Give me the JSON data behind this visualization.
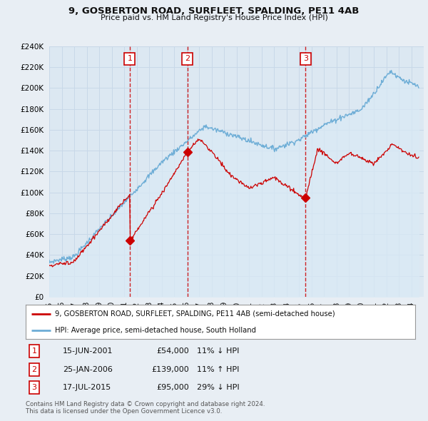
{
  "title": "9, GOSBERTON ROAD, SURFLEET, SPALDING, PE11 4AB",
  "subtitle": "Price paid vs. HM Land Registry's House Price Index (HPI)",
  "ylim": [
    0,
    240000
  ],
  "yticks": [
    0,
    20000,
    40000,
    60000,
    80000,
    100000,
    120000,
    140000,
    160000,
    180000,
    200000,
    220000,
    240000
  ],
  "hpi_color": "#6dadd6",
  "hpi_fill_color": "#daeaf5",
  "price_color": "#cc0000",
  "vline_color": "#cc0000",
  "grid_color": "#c8d8e8",
  "background_color": "#e8eef4",
  "plot_bg_color": "#dce8f2",
  "transactions": [
    {
      "num": 1,
      "date_label": "15-JUN-2001",
      "x_year": 2001.45,
      "price": 54000,
      "hpi_pct": "11% ↓ HPI"
    },
    {
      "num": 2,
      "date_label": "25-JAN-2006",
      "x_year": 2006.07,
      "price": 139000,
      "hpi_pct": "11% ↑ HPI"
    },
    {
      "num": 3,
      "date_label": "17-JUL-2015",
      "x_year": 2015.54,
      "price": 95000,
      "hpi_pct": "29% ↓ HPI"
    }
  ],
  "legend_line1": "9, GOSBERTON ROAD, SURFLEET, SPALDING, PE11 4AB (semi-detached house)",
  "legend_line2": "HPI: Average price, semi-detached house, South Holland",
  "footer1": "Contains HM Land Registry data © Crown copyright and database right 2024.",
  "footer2": "This data is licensed under the Open Government Licence v3.0.",
  "xtick_labels": [
    "95",
    "96",
    "97",
    "98",
    "99",
    "00",
    "01",
    "02",
    "03",
    "04",
    "05",
    "06",
    "07",
    "08",
    "09",
    "10",
    "11",
    "12",
    "13",
    "14",
    "15",
    "16",
    "17",
    "18",
    "19",
    "20",
    "21",
    "22",
    "23",
    "24"
  ],
  "xtick_years": [
    1995,
    1996,
    1997,
    1998,
    1999,
    2000,
    2001,
    2002,
    2003,
    2004,
    2005,
    2006,
    2007,
    2008,
    2009,
    2010,
    2011,
    2012,
    2013,
    2014,
    2015,
    2016,
    2017,
    2018,
    2019,
    2020,
    2021,
    2022,
    2023,
    2024
  ]
}
